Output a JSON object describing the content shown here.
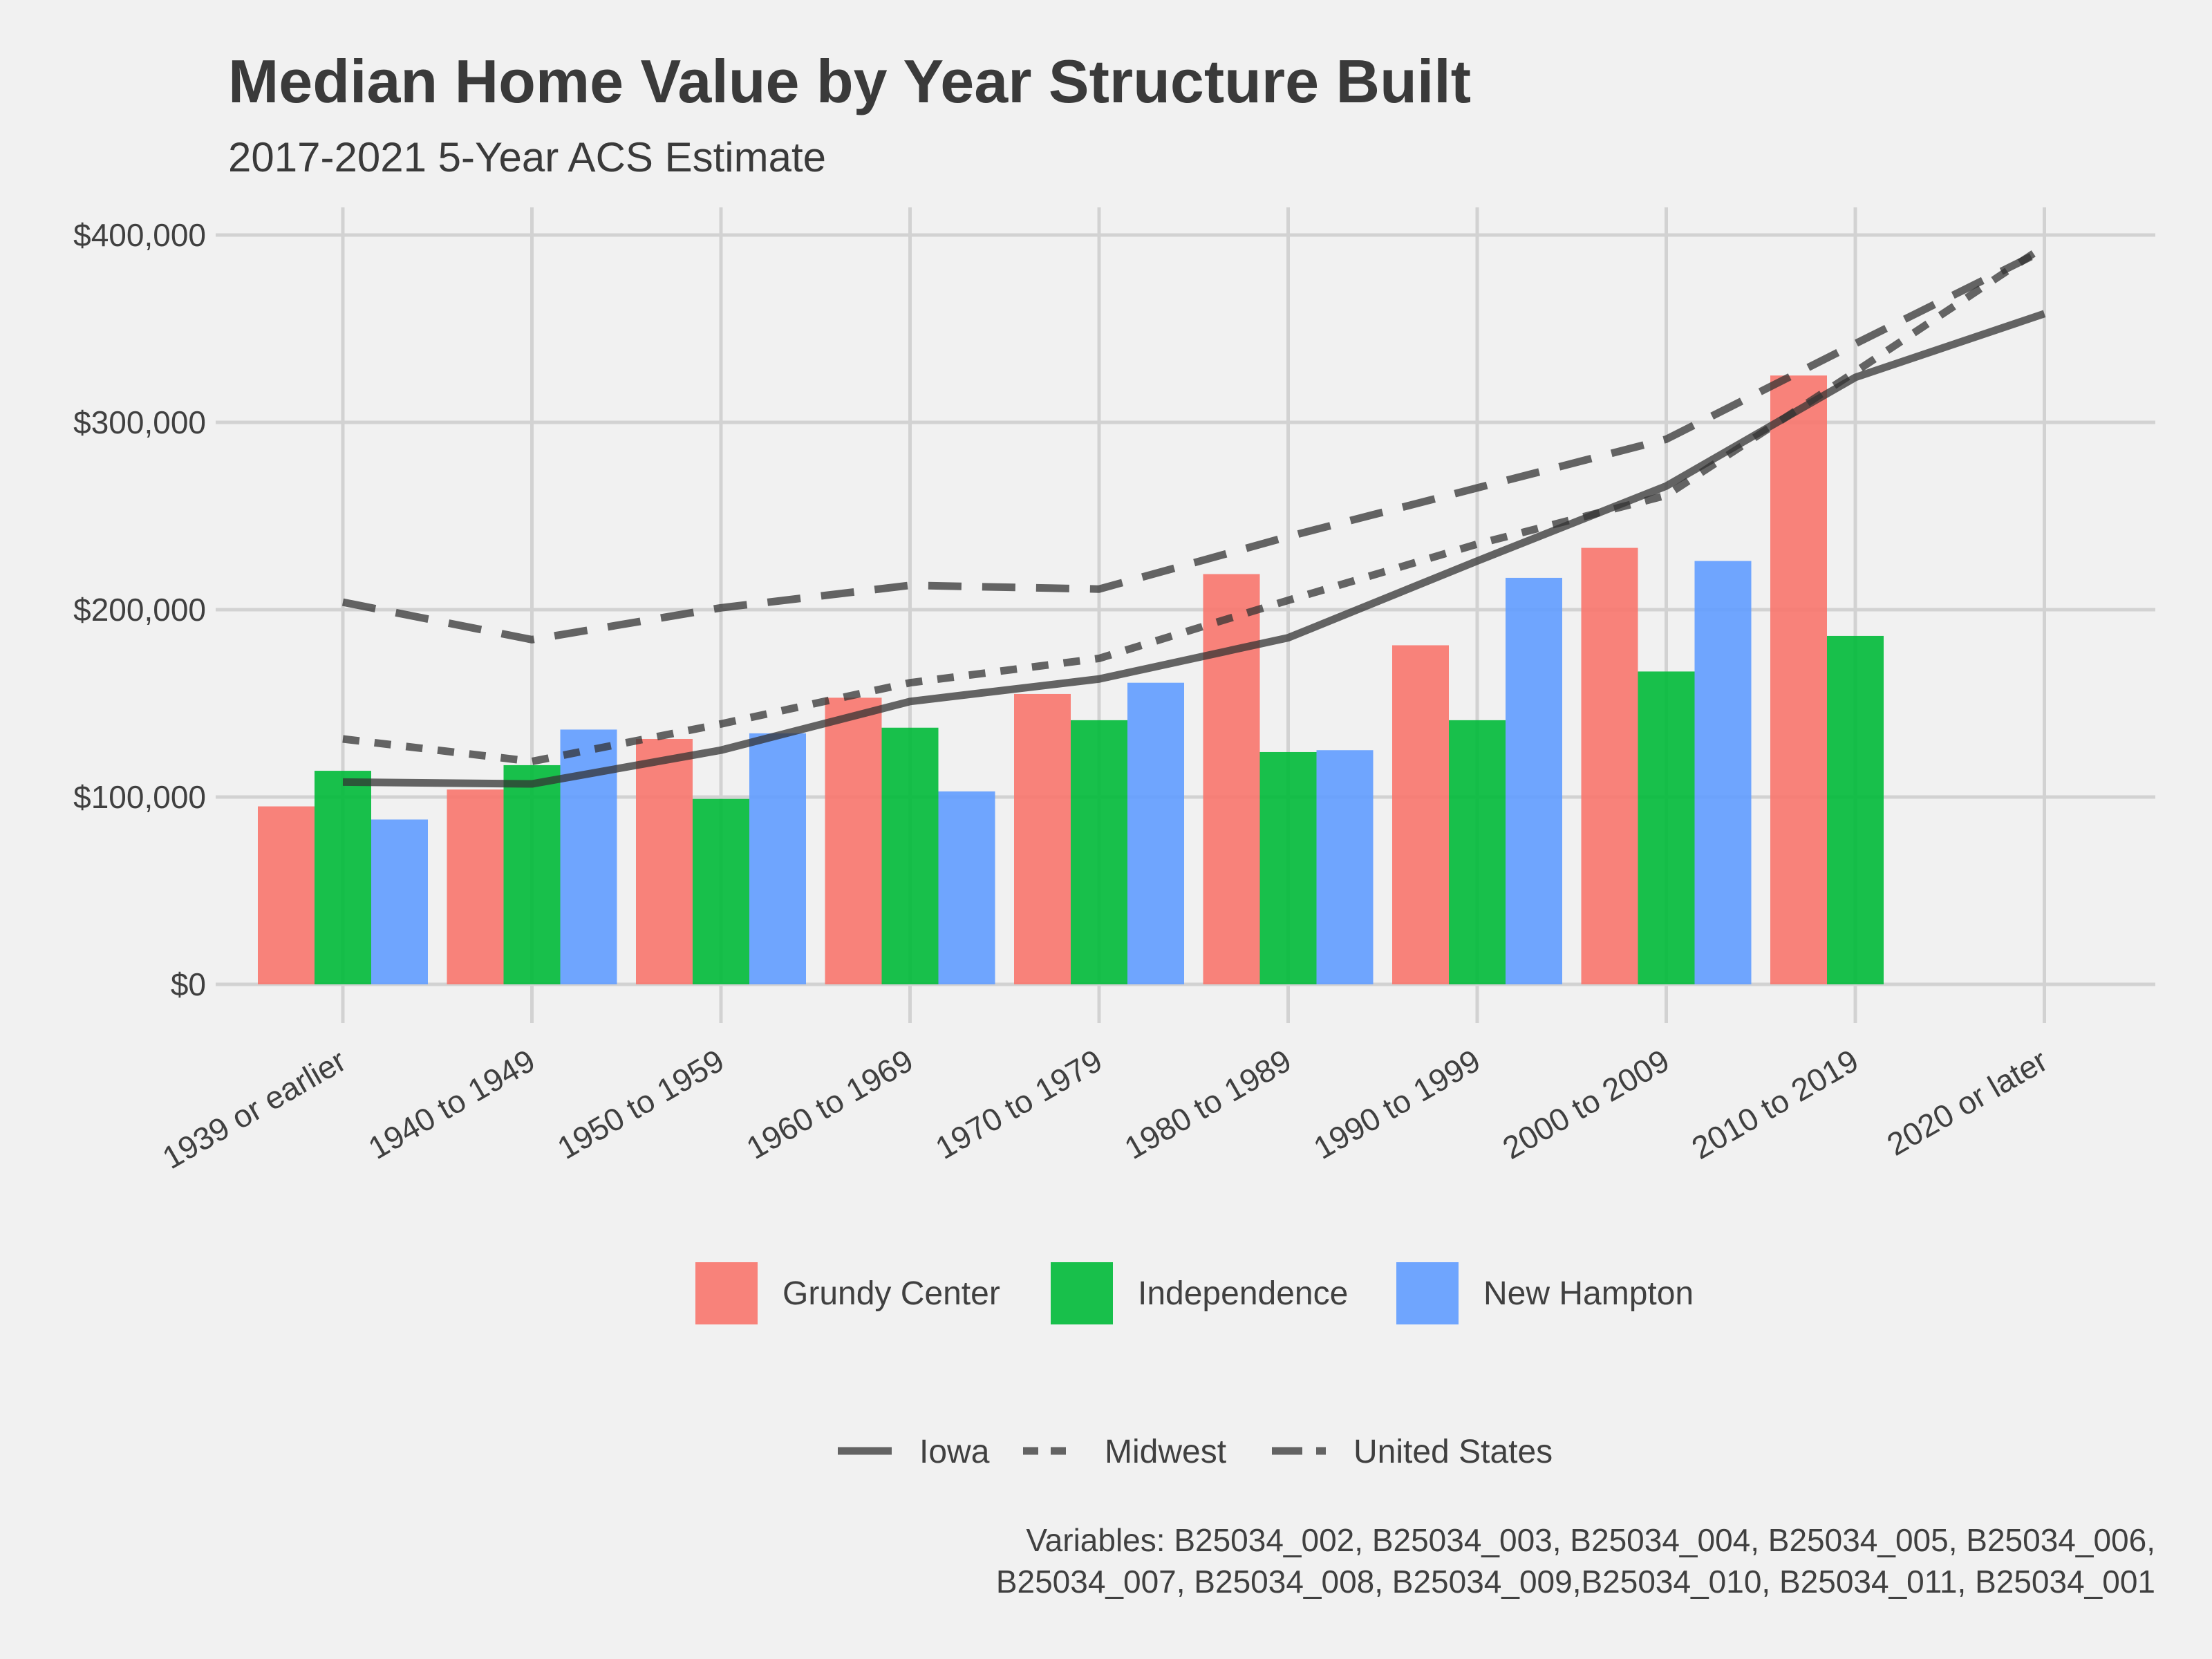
{
  "chart_data": {
    "type": "bar",
    "title": "Median Home Value by Year Structure Built",
    "subtitle": "2017-2021 5-Year ACS Estimate",
    "xlabel": "",
    "ylabel": "",
    "ylim": [
      0,
      400000
    ],
    "y_ticks": [
      0,
      100000,
      200000,
      300000,
      400000
    ],
    "y_tick_labels": [
      "$0",
      "$100,000",
      "$200,000",
      "$300,000",
      "$400,000"
    ],
    "grid": true,
    "categories": [
      "1939 or earlier",
      "1940 to 1949",
      "1950 to 1959",
      "1960 to 1969",
      "1970 to 1979",
      "1980 to 1989",
      "1990 to 1999",
      "2000 to 2009",
      "2010 to 2019",
      "2020 or later"
    ],
    "bar_series": [
      {
        "name": "Grundy Center",
        "color": "#F8766D",
        "values": [
          95000,
          104000,
          131000,
          153000,
          155000,
          219000,
          181000,
          233000,
          325000,
          null
        ]
      },
      {
        "name": "Independence",
        "color": "#00BA38",
        "values": [
          114000,
          117000,
          99000,
          137000,
          141000,
          124000,
          141000,
          167000,
          186000,
          null
        ]
      },
      {
        "name": "New Hampton",
        "color": "#619CFF",
        "values": [
          88000,
          136000,
          134000,
          103000,
          161000,
          125000,
          217000,
          226000,
          null,
          null
        ]
      }
    ],
    "line_series": [
      {
        "name": "Iowa",
        "dash": "solid",
        "color": "#333333",
        "values": [
          108000,
          107000,
          125000,
          151000,
          163000,
          185000,
          226000,
          266000,
          324000,
          358000
        ]
      },
      {
        "name": "Midwest",
        "dash": "dotted",
        "color": "#333333",
        "values": [
          131000,
          119000,
          139000,
          161000,
          174000,
          205000,
          235000,
          261000,
          327000,
          394000
        ]
      },
      {
        "name": "United States",
        "dash": "dashed",
        "color": "#333333",
        "values": [
          204000,
          184000,
          201000,
          213000,
          211000,
          239000,
          265000,
          291000,
          342000,
          392000
        ]
      }
    ],
    "legend_position": "bottom",
    "caption_lines": [
      "Variables: B25034_002, B25034_003, B25034_004, B25034_005, B25034_006,",
      "B25034_007, B25034_008, B25034_009,B25034_010, B25034_011, B25034_001"
    ]
  }
}
